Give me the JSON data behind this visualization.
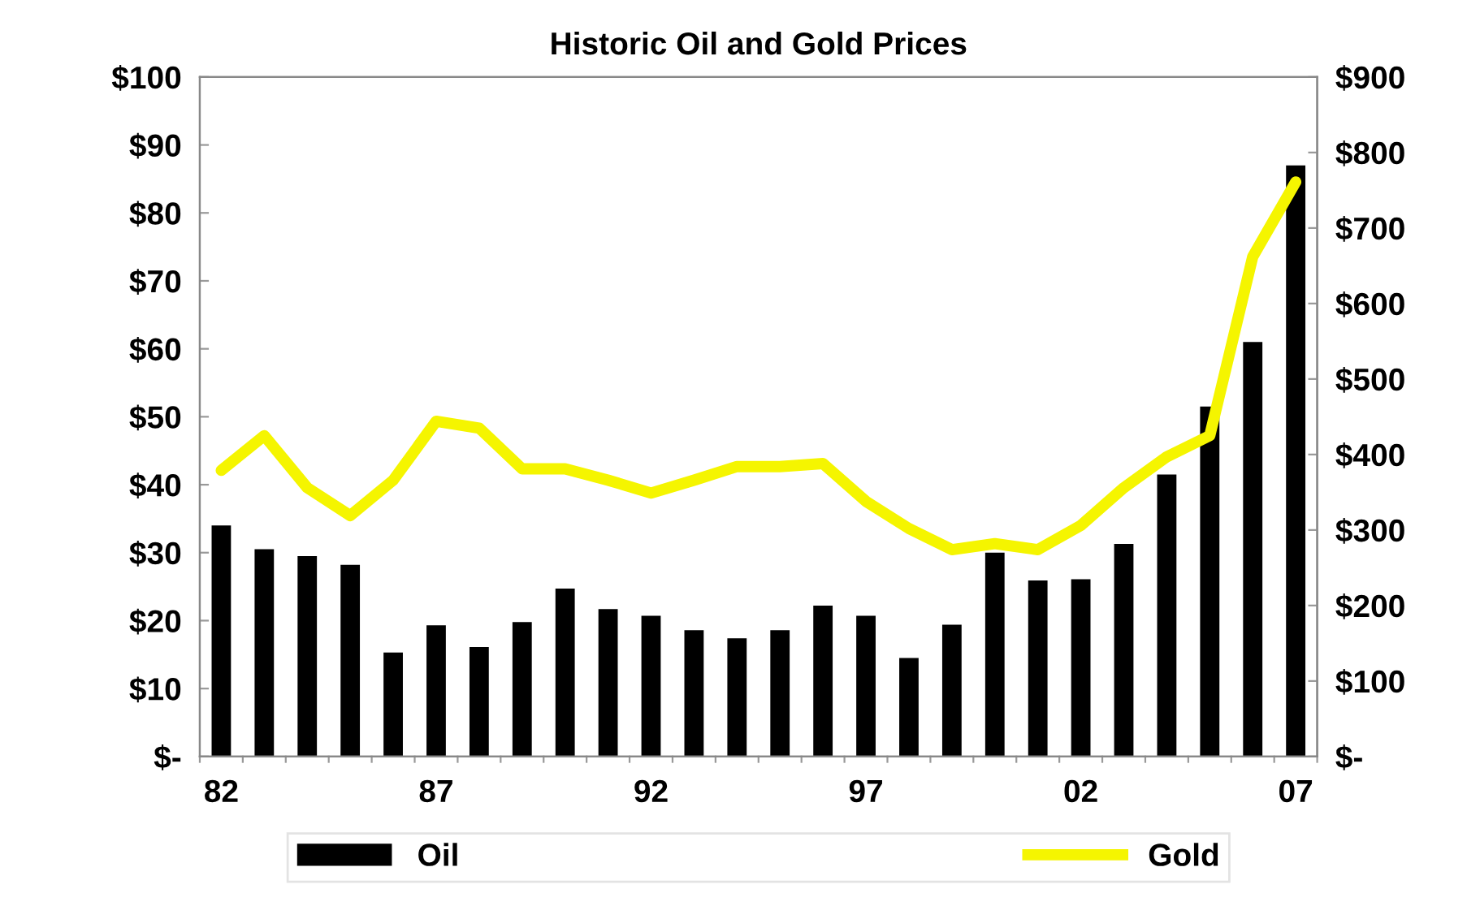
{
  "chart_data": {
    "type": "bar",
    "title": "Historic Oil and Gold Prices",
    "categories": [
      "82",
      null,
      null,
      null,
      null,
      "87",
      null,
      null,
      null,
      null,
      "92",
      null,
      null,
      null,
      null,
      "97",
      null,
      null,
      null,
      null,
      "02",
      null,
      null,
      null,
      null,
      "07"
    ],
    "series": [
      {
        "name": "Oil",
        "color": "#000000",
        "values": [
          34,
          30.5,
          29.5,
          28.2,
          15.3,
          19.3,
          16.1,
          19.8,
          24.7,
          21.7,
          20.7,
          18.6,
          17.4,
          18.6,
          22.2,
          20.7,
          14.5,
          19.4,
          30.0,
          25.9,
          26.1,
          31.3,
          41.5,
          51.5,
          61.0,
          87.0
        ]
      },
      {
        "name": "Gold",
        "type": "line",
        "axis": "y2",
        "color": "#f5f500",
        "values": [
          379,
          425,
          356,
          319,
          366,
          444,
          435,
          381,
          381,
          366,
          349,
          366,
          384,
          384,
          388,
          338,
          302,
          274,
          282,
          274,
          306,
          356,
          397,
          425,
          662,
          761
        ]
      }
    ],
    "ylim": [
      0,
      100
    ],
    "yticks": [
      {
        "value": 0,
        "label": "$-"
      },
      {
        "value": 10,
        "label": "$10"
      },
      {
        "value": 20,
        "label": "$20"
      },
      {
        "value": 30,
        "label": "$30"
      },
      {
        "value": 40,
        "label": "$40"
      },
      {
        "value": 50,
        "label": "$50"
      },
      {
        "value": 60,
        "label": "$60"
      },
      {
        "value": 70,
        "label": "$70"
      },
      {
        "value": 80,
        "label": "$80"
      },
      {
        "value": 90,
        "label": "$90"
      },
      {
        "value": 100,
        "label": "$100"
      }
    ],
    "y2lim": [
      0,
      900
    ],
    "y2ticks": [
      {
        "value": 0,
        "label": "$-"
      },
      {
        "value": 100,
        "label": "$100"
      },
      {
        "value": 200,
        "label": "$200"
      },
      {
        "value": 300,
        "label": "$300"
      },
      {
        "value": 400,
        "label": "$400"
      },
      {
        "value": 500,
        "label": "$500"
      },
      {
        "value": 600,
        "label": "$600"
      },
      {
        "value": 700,
        "label": "$700"
      },
      {
        "value": 800,
        "label": "$800"
      },
      {
        "value": 900,
        "label": "$900"
      }
    ],
    "legend": "bottom",
    "grid": false
  }
}
